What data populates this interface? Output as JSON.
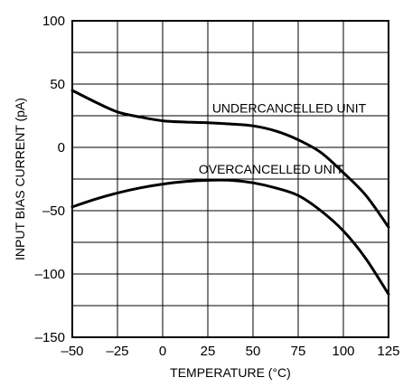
{
  "chart_data": {
    "type": "line",
    "title": "",
    "xlabel": "TEMPERATURE (°C)",
    "ylabel": "INPUT BIAS CURRENT (pA)",
    "xlim": [
      -50,
      125
    ],
    "ylim": [
      -150,
      100
    ],
    "x_ticks": [
      -50,
      -25,
      0,
      25,
      50,
      75,
      100,
      125
    ],
    "x_tick_labels": [
      "–50",
      "–25",
      "0",
      "25",
      "50",
      "75",
      "100",
      "125"
    ],
    "y_ticks": [
      100,
      50,
      0,
      -50,
      -100,
      -150
    ],
    "y_tick_labels": [
      "100",
      "50",
      "0",
      "–50",
      "–100",
      "–150"
    ],
    "x_grid_step": 25,
    "y_grid_step": 25,
    "grid": true,
    "legend": "none",
    "series": [
      {
        "x": [
          -50,
          -37.5,
          -25,
          -12.5,
          0,
          12.5,
          25,
          37.5,
          50,
          62.5,
          75,
          87.5,
          100,
          112.5,
          125
        ],
        "y": [
          45,
          36,
          28,
          24,
          21,
          20,
          19.5,
          18.5,
          17,
          13,
          6,
          -4,
          -20,
          -38,
          -63
        ]
      },
      {
        "x": [
          -50,
          -37.5,
          -25,
          -12.5,
          0,
          12.5,
          25,
          37.5,
          50,
          62.5,
          75,
          87.5,
          100,
          112.5,
          125
        ],
        "y": [
          -47,
          -41,
          -36,
          -32,
          -29,
          -27,
          -26,
          -26,
          -28,
          -32,
          -38,
          -50,
          -66,
          -88,
          -116
        ]
      }
    ],
    "annotations": [
      {
        "text": "UNDERCANCELLED UNIT",
        "x": 70,
        "y": 31
      },
      {
        "text": "OVERCANCELLED UNIT",
        "x": 60,
        "y": -17
      }
    ]
  }
}
